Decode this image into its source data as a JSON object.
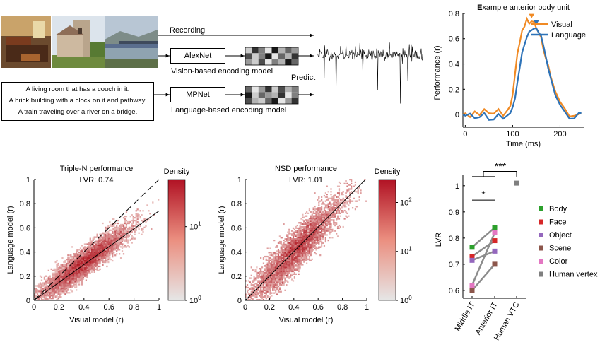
{
  "pipeline": {
    "recording_label": "Recording",
    "alexnet_label": "AlexNet",
    "vision_model_label": "Vision-based encoding model",
    "mpnet_label": "MPNet",
    "language_model_label": "Language-based encoding model",
    "predict_label": "Predict",
    "captions": [
      "A living room that has a couch in it.",
      "A brick building with a clock on it and pathway.",
      "A train traveling over a river on a bridge."
    ],
    "alexnet_grid": [
      0.2,
      0.8,
      0.5,
      0.1,
      0.9,
      0.3,
      0.6,
      0.4,
      0.7,
      0.2,
      0.5,
      0.9,
      0.1,
      0.6,
      0.3,
      0.8,
      0.4,
      0.2,
      0.7,
      0.1,
      0.5,
      0.3,
      0.9,
      0.6
    ],
    "mpnet_grid": [
      0.6,
      0.1,
      0.4,
      0.8,
      0.2,
      0.7,
      0.3,
      0.5,
      0.9,
      0.2,
      0.6,
      0.4,
      0.3,
      0.8,
      0.1,
      0.5,
      0.7,
      0.3,
      0.2,
      0.6,
      0.9,
      0.1,
      0.4,
      0.8
    ]
  },
  "chart_data": [
    {
      "type": "line",
      "title": "Example anterior body unit",
      "title_bold_letters": "E",
      "xlabel": "Time (ms)",
      "ylabel": "Performance (r)",
      "xlim": [
        -5,
        250
      ],
      "ylim": [
        -0.1,
        0.85
      ],
      "xticks": [
        0,
        100,
        200
      ],
      "yticks": [
        0,
        0.2,
        0.4,
        0.6,
        0.8
      ],
      "legend_position": "top-right",
      "series": [
        {
          "name": "Visual",
          "color": "#F08A24",
          "peak": [
            140,
            0.74
          ],
          "x": [
            -5,
            0,
            10,
            20,
            30,
            40,
            50,
            60,
            70,
            80,
            90,
            95,
            100,
            105,
            110,
            115,
            120,
            125,
            130,
            135,
            140,
            145,
            150,
            155,
            160,
            165,
            170,
            175,
            180,
            190,
            200,
            210,
            220,
            230,
            240,
            245
          ],
          "y": [
            0.0,
            0.01,
            -0.01,
            0.02,
            0.0,
            0.03,
            0.01,
            0.0,
            0.02,
            0.0,
            0.02,
            0.06,
            0.16,
            0.32,
            0.48,
            0.6,
            0.68,
            0.72,
            0.74,
            0.74,
            0.74,
            0.73,
            0.7,
            0.66,
            0.6,
            0.52,
            0.46,
            0.38,
            0.3,
            0.18,
            0.09,
            0.04,
            0.01,
            0.0,
            0.02,
            0.01
          ]
        },
        {
          "name": "Language",
          "color": "#2E73B8",
          "peak": [
            150,
            0.69
          ],
          "x": [
            -5,
            0,
            10,
            20,
            30,
            40,
            50,
            60,
            70,
            80,
            90,
            95,
            100,
            105,
            110,
            115,
            120,
            125,
            130,
            135,
            140,
            145,
            150,
            155,
            160,
            165,
            170,
            175,
            180,
            190,
            200,
            210,
            220,
            230,
            240,
            245
          ],
          "y": [
            0.0,
            -0.02,
            0.0,
            -0.03,
            -0.01,
            0.02,
            -0.04,
            -0.05,
            0.01,
            -0.02,
            0.0,
            0.02,
            0.05,
            0.12,
            0.24,
            0.36,
            0.48,
            0.56,
            0.62,
            0.66,
            0.68,
            0.69,
            0.69,
            0.66,
            0.6,
            0.54,
            0.46,
            0.38,
            0.3,
            0.16,
            0.07,
            0.02,
            -0.02,
            -0.03,
            0.0,
            0.01
          ]
        }
      ]
    },
    {
      "type": "heatmap",
      "title": "Triple-N performance",
      "annotation": "LVR: 0.74",
      "xlabel": "Visual model (r)",
      "ylabel": "Language model (r)",
      "xlim": [
        0,
        1
      ],
      "ylim": [
        0,
        1
      ],
      "xticks": [
        0,
        0.2,
        0.4,
        0.6,
        0.8,
        1
      ],
      "yticks": [
        0,
        0.2,
        0.4,
        0.6,
        0.8,
        1
      ],
      "fit_line": {
        "slope": 0.74,
        "intercept": 0
      },
      "identity_line": "dashed",
      "density_cloud": {
        "x_center": 0.4,
        "y_center": 0.3,
        "x_spread": 0.17,
        "y_spread": 0.12
      },
      "colorbar": {
        "label": "Density",
        "ticks": [
          "10",
          "10"
        ],
        "exponents": [
          "1",
          "0"
        ],
        "scale": "log"
      }
    },
    {
      "type": "heatmap",
      "title": "NSD performance",
      "annotation": "LVR: 1.01",
      "xlabel": "Visual model (r)",
      "ylabel": "Language model (r)",
      "xlim": [
        0,
        1
      ],
      "ylim": [
        0,
        1
      ],
      "xticks": [
        0,
        0.2,
        0.4,
        0.6,
        0.8,
        1
      ],
      "yticks": [
        0,
        0.2,
        0.4,
        0.6,
        0.8,
        1
      ],
      "fit_line": {
        "slope": 1.01,
        "intercept": 0
      },
      "identity_line": "solid",
      "density_cloud": {
        "x_center": 0.42,
        "y_center": 0.42,
        "x_spread": 0.18,
        "y_spread": 0.18
      },
      "colorbar": {
        "label": "Density",
        "ticks": [
          "10",
          "10",
          "10"
        ],
        "exponents": [
          "2",
          "1",
          "0"
        ],
        "scale": "log"
      }
    },
    {
      "type": "scatter",
      "ylabel": "LVR",
      "categories": [
        "Middle IT",
        "Anterior IT",
        "Human VTC"
      ],
      "ylim": [
        0.57,
        1.04
      ],
      "yticks": [
        0.6,
        0.7,
        0.8,
        0.9,
        1
      ],
      "series": [
        {
          "name": "Body",
          "color": "#2CA02C",
          "values": [
            0.765,
            0.84
          ]
        },
        {
          "name": "Face",
          "color": "#D62728",
          "values": [
            0.73,
            0.79
          ]
        },
        {
          "name": "Object",
          "color": "#9467BD",
          "values": [
            0.715,
            0.75
          ]
        },
        {
          "name": "Scene",
          "color": "#8C564B",
          "values": [
            0.6,
            0.7
          ]
        },
        {
          "name": "Color",
          "color": "#E377C2",
          "values": [
            0.62,
            0.82
          ]
        },
        {
          "name": "Human vertex",
          "color": "#7F7F7F",
          "values": [
            1.01
          ]
        }
      ],
      "significance": [
        {
          "label": "*",
          "between": [
            "Middle IT",
            "Anterior IT"
          ]
        },
        {
          "label": "***",
          "between": [
            "Middle IT, Anterior IT",
            "Human VTC"
          ]
        }
      ]
    }
  ]
}
